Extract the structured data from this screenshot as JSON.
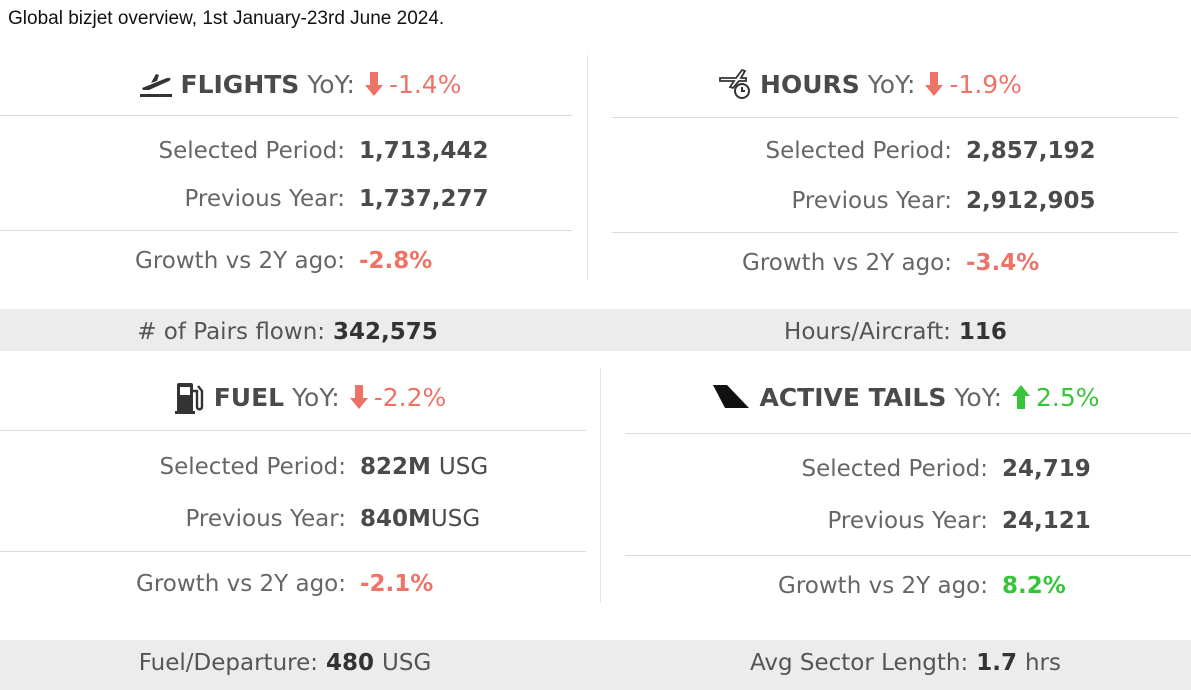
{
  "caption": "Global bizjet overview, 1st January-23rd June 2024.",
  "colors": {
    "negative": "#ee7266",
    "positive": "#36c43a",
    "band": "#ececec"
  },
  "flights": {
    "icon": "plane-takeoff-icon",
    "title": "FLIGHTS",
    "yoy_label": "YoY:",
    "yoy_dir": "down",
    "yoy_value": "-1.4%",
    "selected_label": "Selected Period:",
    "selected_value": "1,713,442",
    "previous_label": "Previous Year:",
    "previous_value": "1,737,277",
    "growth_label": "Growth vs 2Y ago:",
    "growth_value": "-2.8%"
  },
  "hours": {
    "icon": "plane-clock-icon",
    "title": "HOURS",
    "yoy_label": "YoY:",
    "yoy_dir": "down",
    "yoy_value": "-1.9%",
    "selected_label": "Selected Period:",
    "selected_value": "2,857,192",
    "previous_label": "Previous Year:",
    "previous_value": "2,912,905",
    "growth_label": "Growth vs 2Y ago:",
    "growth_value": "-3.4%"
  },
  "fuel": {
    "icon": "fuel-pump-icon",
    "title": "FUEL",
    "yoy_label": "YoY:",
    "yoy_dir": "down",
    "yoy_value": "-2.2%",
    "selected_label": "Selected Period:",
    "selected_value": "822M",
    "selected_unit": "USG",
    "previous_label": "Previous Year:",
    "previous_value": "840M",
    "previous_unit": "USG",
    "growth_label": "Growth vs 2Y ago:",
    "growth_value": "-2.1%"
  },
  "tails": {
    "icon": "tail-fin-icon",
    "title": "ACTIVE TAILS",
    "yoy_label": "YoY:",
    "yoy_dir": "up",
    "yoy_value": "2.5%",
    "selected_label": "Selected Period:",
    "selected_value": "24,719",
    "previous_label": "Previous Year:",
    "previous_value": "24,121",
    "growth_label": "Growth vs 2Y ago:",
    "growth_value": "8.2%"
  },
  "footers": {
    "pairs_label": "# of Pairs flown:",
    "pairs_value": "342,575",
    "hours_aircraft_label": "Hours/Aircraft:",
    "hours_aircraft_value": "116",
    "fuel_departure_label": "Fuel/Departure:",
    "fuel_departure_value": "480",
    "fuel_departure_unit": "USG",
    "sector_label": "Avg Sector Length:",
    "sector_value": "1.7",
    "sector_unit": "hrs"
  }
}
